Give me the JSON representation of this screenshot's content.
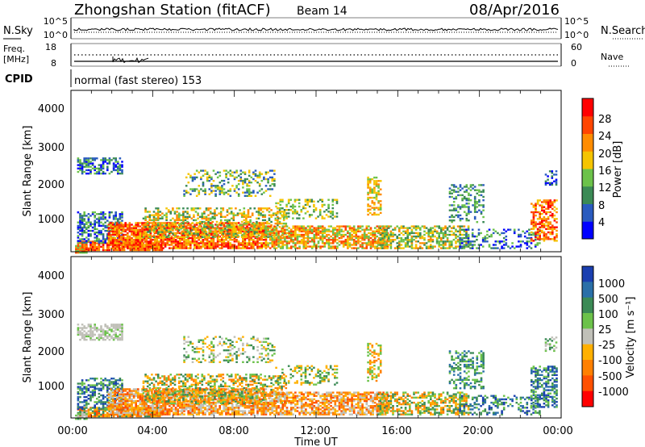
{
  "header": {
    "station": "Zhongshan Station (fitACF)",
    "beam": "Beam 14",
    "date": "08/Apr/2016"
  },
  "top_panel": {
    "left_label": "N.Sky",
    "right_label": "N.Search",
    "left_ticks": [
      "10^5",
      "10^0"
    ],
    "right_ticks": [
      "10^5",
      "10^0"
    ]
  },
  "freq_panel": {
    "left_label_1": "Freq.",
    "left_label_2": "[MHz]",
    "right_label": "Nave",
    "left_ticks": [
      "18",
      "8"
    ],
    "right_ticks": [
      "60",
      "0"
    ]
  },
  "cpid": {
    "label": "CPID",
    "text": "normal (fast stereo) 153"
  },
  "power_panel": {
    "ylabel": "Slant Range [km]",
    "yticks": [
      "4000",
      "3000",
      "2000",
      "1000"
    ],
    "colorbar_label": "Power [dB]",
    "colorbar_ticks": [
      "28",
      "24",
      "20",
      "16",
      "12",
      "8",
      "4"
    ],
    "colors": [
      "#0000ff",
      "#2a5bbf",
      "#3b8a55",
      "#6cc24a",
      "#f5c400",
      "#ff8c00",
      "#ff4500",
      "#ff0000"
    ]
  },
  "velocity_panel": {
    "ylabel": "Slant Range [km]",
    "yticks": [
      "4000",
      "3000",
      "2000",
      "1000"
    ],
    "colorbar_label": "Velocity [m s⁻¹]",
    "colorbar_ticks": [
      "1000",
      "500",
      "100",
      "25",
      "-25",
      "-100",
      "-500",
      "-1000"
    ],
    "colors": [
      "#1a3fb0",
      "#2a6fa8",
      "#3b8a55",
      "#6cc24a",
      "#c0c0b8",
      "#ffb000",
      "#ff8000",
      "#ff5000",
      "#ff0000"
    ]
  },
  "xaxis": {
    "ticks": [
      "00:00",
      "04:00",
      "08:00",
      "12:00",
      "16:00",
      "20:00",
      "00:00"
    ],
    "label": "Time UT"
  },
  "chart_data": {
    "type": "heatmap",
    "title": "Zhongshan Station (fitACF)",
    "x_range_hours": [
      0,
      24
    ],
    "y_range_km": [
      180,
      4500
    ],
    "colorbar_power_db_range": [
      0,
      30
    ],
    "colorbar_velocity_range": [
      -1000,
      1000
    ]
  }
}
